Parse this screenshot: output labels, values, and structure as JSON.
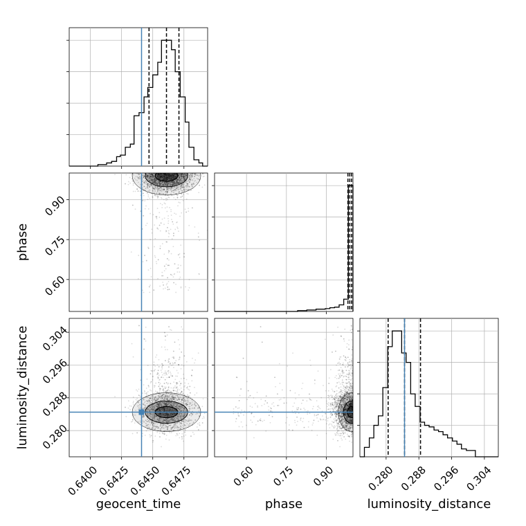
{
  "chart_data": {
    "type": "corner",
    "parameters": [
      "geocent_time",
      "phase",
      "luminosity_distance"
    ],
    "axis_labels": {
      "x": [
        "geocent_time",
        "phase",
        "luminosity_distance"
      ],
      "y": [
        "",
        "phase",
        "luminosity_distance"
      ]
    },
    "colors": {
      "truth": "#4682b4",
      "hist": "#000000",
      "grid": "#b0b0b0",
      "points": "#000000"
    },
    "ranges": {
      "geocent_time": [
        0.6383,
        0.6494
      ],
      "phase": [
        0.48,
        1.0
      ],
      "luminosity_distance": [
        0.2736,
        0.3074
      ]
    },
    "ticks": {
      "geocent_time": {
        "values": [
          0.64,
          0.6425,
          0.645,
          0.6475
        ],
        "labels": [
          "0.6400",
          "0.6425",
          "0.6450",
          "0.6475"
        ]
      },
      "phase": {
        "values": [
          0.6,
          0.75,
          0.9
        ],
        "labels": [
          "0.60",
          "0.75",
          "0.90"
        ]
      },
      "luminosity_distance": {
        "values": [
          0.28,
          0.288,
          0.296,
          0.304
        ],
        "labels": [
          "0.280",
          "0.288",
          "0.296",
          "0.304"
        ]
      }
    },
    "truths": {
      "geocent_time": 0.6441,
      "phase": null,
      "luminosity_distance": 0.2845
    },
    "quantiles": {
      "geocent_time": [
        0.6447,
        0.6461,
        0.6471
      ],
      "phase": [
        0.981,
        0.988,
        0.995
      ],
      "luminosity_distance": [
        0.2805,
        0.2845,
        0.2884
      ]
    },
    "histograms": {
      "geocent_time": {
        "edges": [
          0.6383,
          0.6387,
          0.6391,
          0.6395,
          0.6398,
          0.6402,
          0.6406,
          0.641,
          0.6413,
          0.6417,
          0.6421,
          0.6424,
          0.6428,
          0.6432,
          0.6435,
          0.6439,
          0.6443,
          0.6446,
          0.645,
          0.6454,
          0.6457,
          0.6461,
          0.6465,
          0.6468,
          0.6472,
          0.6476,
          0.6479,
          0.6483,
          0.6487,
          0.649,
          0.6494
        ],
        "counts": [
          0,
          0,
          0,
          0,
          0,
          0,
          0.5,
          0.5,
          1,
          1.5,
          3,
          3.5,
          6,
          7,
          16,
          17,
          22,
          25,
          29,
          33,
          40,
          40,
          37,
          30,
          22,
          14,
          6,
          2,
          1,
          0
        ]
      },
      "phase": {
        "edges": [
          0.48,
          0.4973,
          0.5147,
          0.532,
          0.5493,
          0.5667,
          0.584,
          0.6013,
          0.6187,
          0.636,
          0.6533,
          0.6707,
          0.688,
          0.7053,
          0.7227,
          0.74,
          0.7573,
          0.7747,
          0.792,
          0.8093,
          0.8267,
          0.844,
          0.8613,
          0.8787,
          0.896,
          0.9133,
          0.9307,
          0.948,
          0.9653,
          0.9827,
          1.0
        ],
        "counts": [
          0,
          0,
          0,
          0,
          0,
          0,
          0,
          0,
          0,
          0,
          0,
          0,
          0,
          0,
          0,
          0,
          0,
          0,
          0.3,
          0.3,
          0.5,
          0.5,
          0.8,
          0.8,
          1,
          1.3,
          1.5,
          2.3,
          4.3,
          44
        ]
      },
      "luminosity_distance": {
        "edges": [
          0.2736,
          0.2747,
          0.2759,
          0.277,
          0.2781,
          0.2792,
          0.2804,
          0.2815,
          0.2826,
          0.2838,
          0.2849,
          0.286,
          0.2871,
          0.2883,
          0.2894,
          0.2905,
          0.2917,
          0.2928,
          0.2939,
          0.295,
          0.2962,
          0.2973,
          0.2984,
          0.2996,
          0.3007,
          0.3018,
          0.3029,
          0.3041,
          0.3052,
          0.3063,
          0.3074
        ],
        "counts": [
          0,
          3,
          6,
          10,
          13,
          22,
          35,
          40,
          40,
          33,
          30,
          20,
          16,
          11,
          10,
          9.5,
          8.5,
          8,
          7,
          6,
          5,
          4,
          2.5,
          2,
          2,
          0,
          0,
          0,
          0,
          0
        ]
      }
    }
  }
}
